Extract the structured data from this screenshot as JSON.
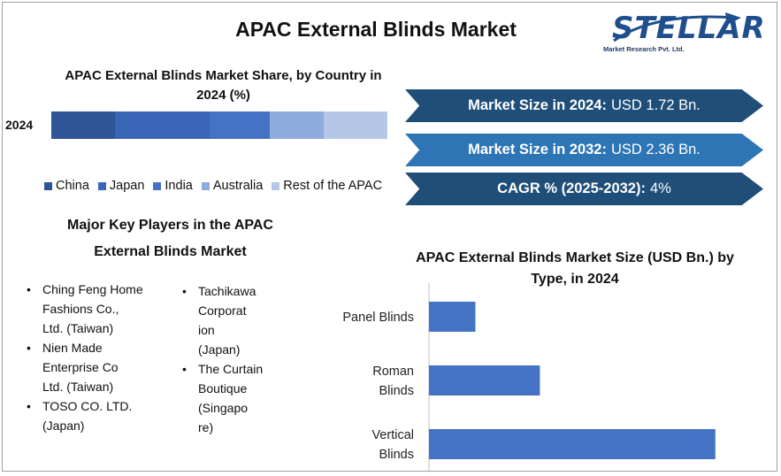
{
  "title": "APAC External Blinds Market",
  "logo": {
    "name": "STELLAR",
    "subtitle": "Market Research Pvt. Ltd."
  },
  "share_chart": {
    "title": "APAC External Blinds Market Share, by Country in 2024 (%)",
    "year_label": "2024"
  },
  "banners": [
    {
      "label": "Market Size in 2024:",
      "value": "USD 1.72 Bn.",
      "color": "#1f4e79"
    },
    {
      "label": "Market Size in 2032:",
      "value": "USD 2.36 Bn.",
      "color": "#2e75b6"
    },
    {
      "label": "CAGR % (2025-2032):",
      "value": "4%",
      "color": "#1f4e79"
    }
  ],
  "players": {
    "title_line1": "Major Key Players in the APAC",
    "title_line2": "External Blinds Market",
    "col1": [
      "Ching Feng Home\nFashions Co.,\nLtd. (Taiwan)",
      "Nien Made\nEnterprise Co\nLtd. (Taiwan)",
      "TOSO CO. LTD.\n(Japan)"
    ],
    "col2": [
      "Tachikawa\nCorporat\nion\n(Japan)",
      "The Curtain\nBoutique\n(Singapo\nre)"
    ]
  },
  "chart_data": [
    {
      "type": "bar",
      "orientation": "horizontal-stacked",
      "title": "APAC External Blinds Market Share, by Country in 2024 (%)",
      "categories": [
        "2024"
      ],
      "series": [
        {
          "name": "China",
          "values": [
            19
          ],
          "color": "#2f5597"
        },
        {
          "name": "Japan",
          "values": [
            28
          ],
          "color": "#3a66b7"
        },
        {
          "name": "India",
          "values": [
            18
          ],
          "color": "#4472c4"
        },
        {
          "name": "Australia",
          "values": [
            16
          ],
          "color": "#8faadc"
        },
        {
          "name": "Rest of the APAC",
          "values": [
            19
          ],
          "color": "#b4c7e7"
        }
      ],
      "legend": "bottom",
      "xlim": [
        0,
        100
      ]
    },
    {
      "type": "bar",
      "orientation": "horizontal",
      "title": "APAC External Blinds Market Size (USD Bn.) by Type, in 2024",
      "categories": [
        "Panel Blinds",
        "Roman Blinds",
        "Vertical Blinds"
      ],
      "category_lines": [
        [
          "Panel Blinds"
        ],
        [
          "Roman",
          "Blinds"
        ],
        [
          "Vertical",
          "Blinds"
        ]
      ],
      "values": [
        0.18,
        0.43,
        1.11
      ],
      "color": "#4472c4",
      "xlim": [
        0,
        1.2
      ],
      "grid": false
    }
  ]
}
